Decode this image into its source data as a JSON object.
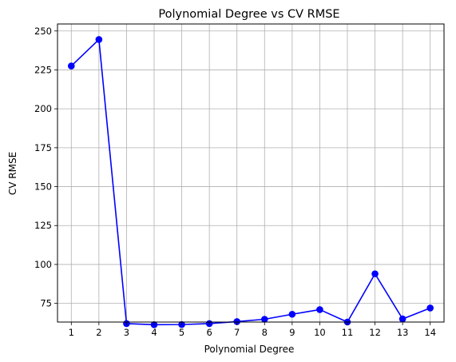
{
  "chart_data": {
    "type": "line",
    "title": "Polynomial Degree vs CV RMSE",
    "xlabel": "Polynomial Degree",
    "ylabel": "CV RMSE",
    "x": [
      1,
      2,
      3,
      4,
      5,
      6,
      7,
      8,
      9,
      10,
      11,
      12,
      13,
      14
    ],
    "series": [
      {
        "values": [
          227.5,
          244.5,
          62.0,
          61.3,
          61.4,
          62.0,
          63.3,
          64.8,
          68.0,
          71.0,
          63.0,
          94.0,
          65.0,
          72.0
        ],
        "color": "#0000ff",
        "marker": "circle"
      }
    ],
    "xlim": [
      0.5,
      14.5
    ],
    "ylim": [
      63.0,
      254.5
    ],
    "xticks": [
      "1",
      "2",
      "3",
      "4",
      "5",
      "6",
      "7",
      "8",
      "9",
      "10",
      "11",
      "12",
      "13",
      "14"
    ],
    "yticks": [
      "75",
      "100",
      "125",
      "150",
      "175",
      "200",
      "225",
      "250"
    ],
    "grid": true,
    "grid_color": "#b0b0b0",
    "legend": "none"
  }
}
